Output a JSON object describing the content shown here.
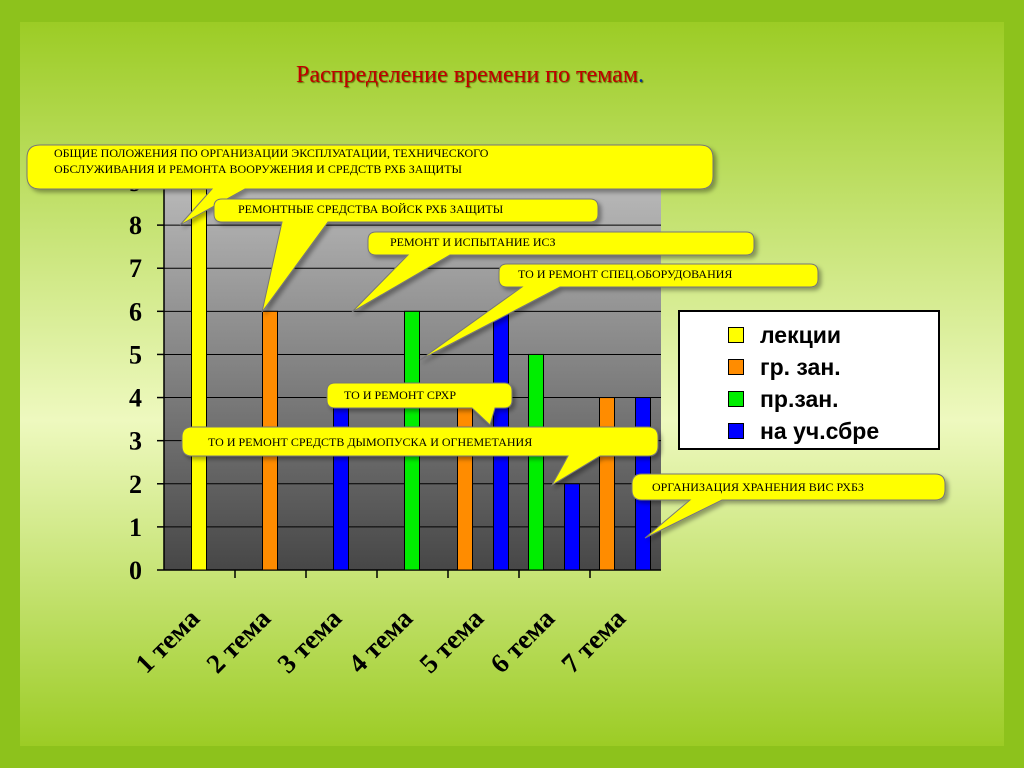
{
  "slide_title": {
    "text": "Распределение времени по темам",
    "dot": "."
  },
  "colors": {
    "background": "#9ccc25",
    "background_light": "#eef9bf",
    "plot_top": "#b9b9b9",
    "plot_bottom": "#474747",
    "callout_fill": "#ffff00",
    "title_color": "#c00000"
  },
  "chart_data": {
    "type": "bar",
    "categories": [
      "1 тема",
      "2 тема",
      "3 тема",
      "4 тема",
      "5 тема",
      "6 тема",
      "7 тема"
    ],
    "ylim": [
      0,
      9
    ],
    "yticks": [
      0,
      1,
      2,
      3,
      4,
      5,
      6,
      7,
      8,
      9
    ],
    "grid": true,
    "legend_position": "right",
    "series": [
      {
        "name": "лекции",
        "color": "#ffff00",
        "values": [
          9,
          null,
          null,
          null,
          null,
          null,
          null
        ]
      },
      {
        "name": "гр. зан.",
        "color": "#ff8c00",
        "values": [
          null,
          6,
          null,
          null,
          4,
          null,
          4
        ]
      },
      {
        "name": "пр.зан.",
        "color": "#00ee00",
        "values": [
          null,
          null,
          null,
          6,
          null,
          5,
          null
        ]
      },
      {
        "name": "на уч.сбре",
        "color": "#0000ff",
        "values": [
          null,
          null,
          4,
          null,
          6,
          2,
          4
        ]
      }
    ]
  },
  "legend": {
    "items": [
      {
        "label": "лекции",
        "color": "#ffff00"
      },
      {
        "label": "гр. зан.",
        "color": "#ff8c00"
      },
      {
        "label": "пр.зан.",
        "color": "#00ee00"
      },
      {
        "label": "на уч.сбре",
        "color": "#0000ff"
      }
    ]
  },
  "callouts": {
    "general": {
      "line1": "Общие положения по организации эксплуатации, технического",
      "line2": "обслуживания и ремонта вооружения и средств РХБ защиты"
    },
    "repair_means": "Ремонтные средства войск РХБ защиты",
    "isz": "Ремонт и испытание ИСЗ",
    "special_equipment": "ТО и ремонт спец.оборудования",
    "srhr": "ТО и ремонт СРХР",
    "smoke": "ТО и ремонт средств дымопуска и огнеметания",
    "storage": "Организация хранения ВиС РХБЗ"
  }
}
